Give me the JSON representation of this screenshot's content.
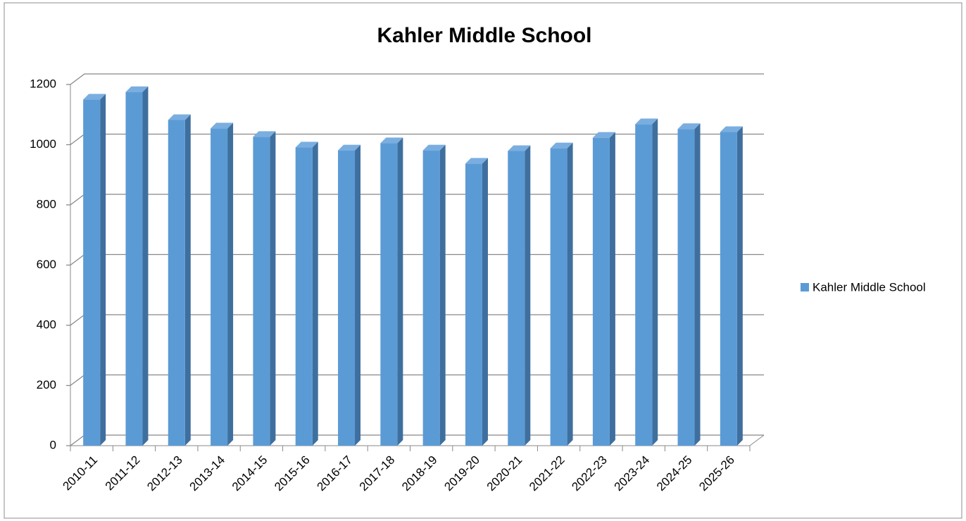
{
  "chart_data": {
    "type": "bar3d",
    "title": "Kahler Middle School",
    "categories": [
      "2010-11",
      "2011-12",
      "2012-13",
      "2013-14",
      "2014-15",
      "2015-16",
      "2016-17",
      "2017-18",
      "2018-19",
      "2019-20",
      "2020-21",
      "2021-22",
      "2022-23",
      "2023-24",
      "2024-25",
      "2025-26"
    ],
    "series": [
      {
        "name": "Kahler Middle School",
        "color": "#5b9bd5",
        "values": [
          1150,
          1175,
          1082,
          1054,
          1026,
          991,
          981,
          1005,
          981,
          937,
          979,
          988,
          1023,
          1068,
          1052,
          1042
        ]
      }
    ],
    "ylim": [
      0,
      1200
    ],
    "yticks": [
      0,
      200,
      400,
      600,
      800,
      1000,
      1200
    ],
    "grid": true,
    "legend": "right"
  }
}
